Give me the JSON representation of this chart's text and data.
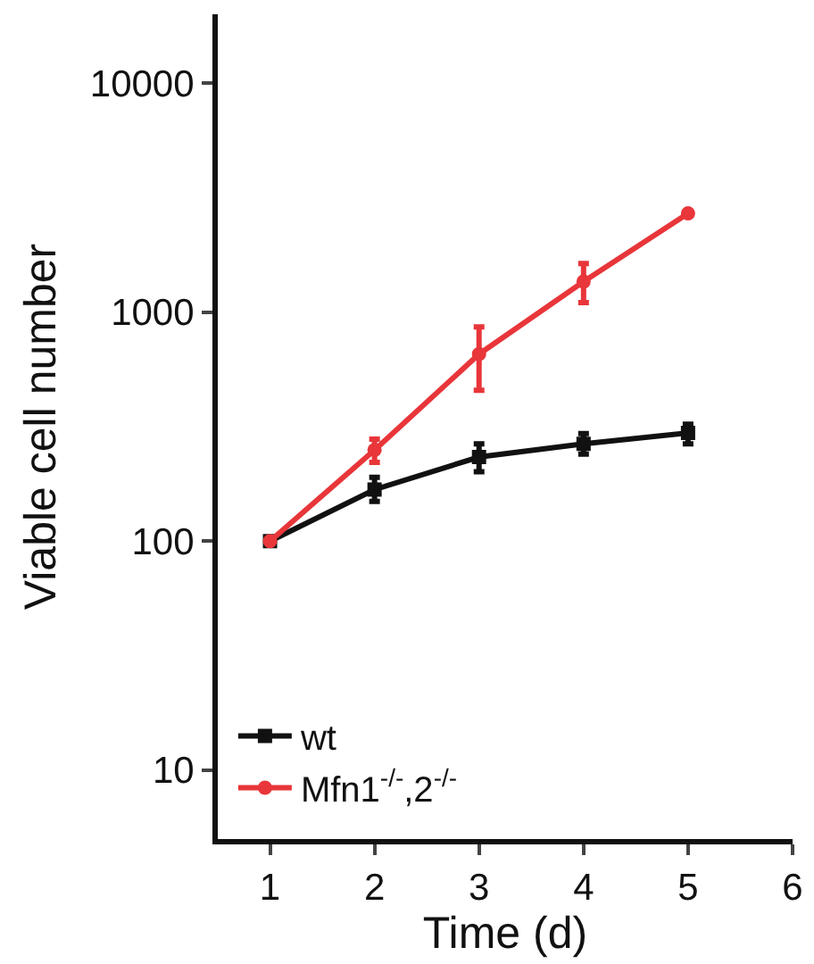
{
  "chart_data": {
    "type": "line",
    "xlabel": "Time (d)",
    "ylabel": "Viable cell number",
    "x": [
      1,
      2,
      3,
      4,
      5
    ],
    "series": [
      {
        "name": "wt",
        "color": "#111111",
        "marker": "square",
        "values": [
          100,
          168,
          233,
          266,
          297
        ],
        "errors": [
          null,
          [
            149,
            190
          ],
          [
            201,
            266
          ],
          [
            240,
            295
          ],
          [
            266,
            324
          ]
        ]
      },
      {
        "name": "Mfn1$^{-/-}$,2$^{-/-}$",
        "color": "#e8363a",
        "marker": "circle",
        "values": [
          100,
          250,
          656,
          1360,
          2700
        ],
        "errors": [
          null,
          [
            221,
            279
          ],
          [
            456,
            863
          ],
          [
            1100,
            1630
          ],
          null
        ]
      }
    ],
    "log": "y",
    "xlim": [
      0.5,
      6
    ],
    "xticks": [
      1,
      2,
      3,
      4,
      5,
      6
    ],
    "ylim": [
      5,
      20000
    ],
    "yticks": [
      10,
      100,
      1000,
      10000
    ],
    "grid": false,
    "legend": "bottom left",
    "line_style": "solid"
  }
}
